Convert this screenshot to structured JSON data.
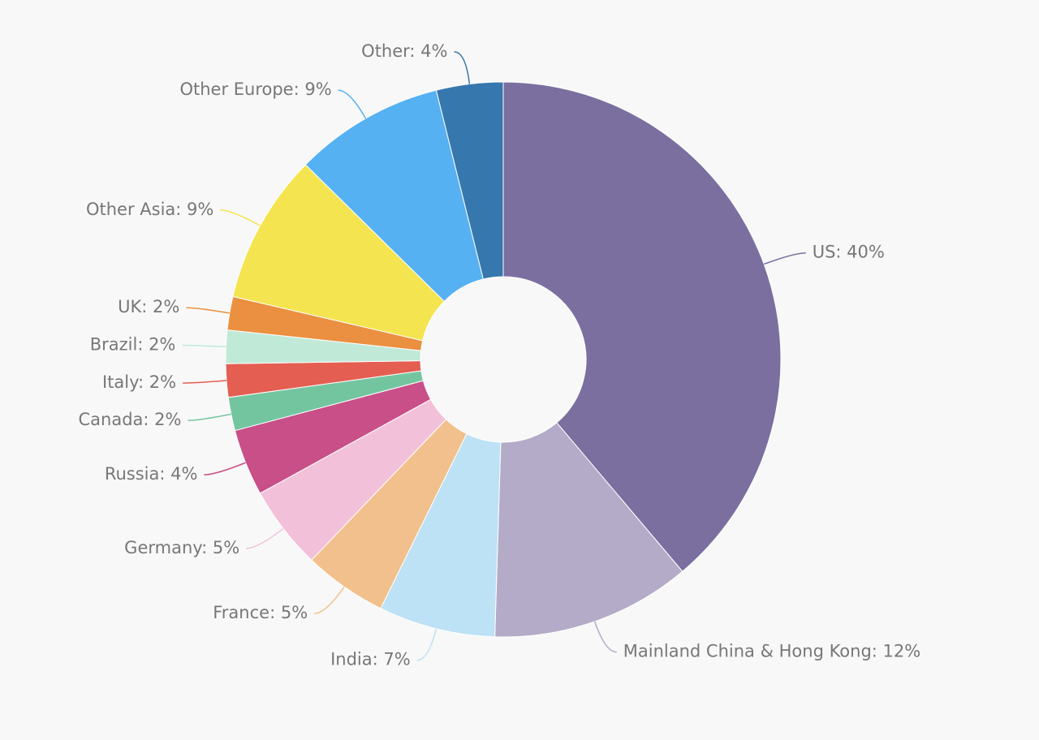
{
  "chart_data": {
    "type": "donut",
    "values": [
      40,
      12,
      7,
      5,
      5,
      4,
      2,
      2,
      2,
      2,
      9,
      9,
      4
    ],
    "value_labels": [
      "US: 40%",
      "Mainland China & Hong Kong: 12%",
      "India: 7%",
      "France: 5%",
      "Germany: 5%",
      "Russia: 4%",
      "Canada: 2%",
      "Italy: 2%",
      "Brazil: 2%",
      "UK: 2%",
      "Other Asia: 9%",
      "Other Europe: 9%",
      "Other: 4%"
    ],
    "colors": [
      "#7b6fa0",
      "#b4abc8",
      "#bde1f5",
      "#f2c08c",
      "#f2c1d9",
      "#c84f88",
      "#73c5a0",
      "#e45e52",
      "#c0e9d8",
      "#ea9040",
      "#f4e44f",
      "#56b1f2",
      "#3677ad"
    ]
  }
}
